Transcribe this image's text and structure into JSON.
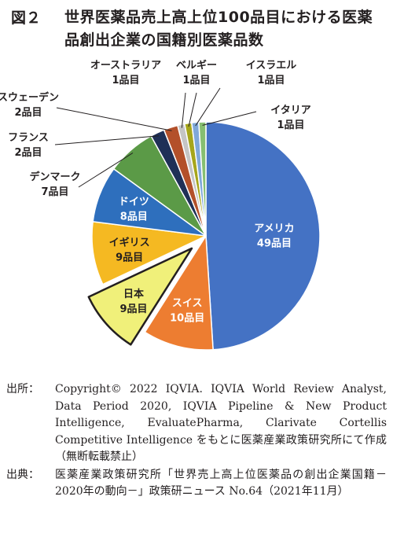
{
  "figure": {
    "label": "図２",
    "title": "世界医薬品売上高上位100品目における医薬品創出企業の国籍別医薬品数"
  },
  "chart_data": {
    "type": "pie",
    "unit": "品目",
    "slices": [
      {
        "name": "アメリカ",
        "value": 49,
        "value_label": "49品目",
        "color": "#4472c4"
      },
      {
        "name": "スイス",
        "value": 10,
        "value_label": "10品目",
        "color": "#ed7d31"
      },
      {
        "name": "日本",
        "value": 9,
        "value_label": "9品目",
        "color": "#f0f07a",
        "highlighted": true
      },
      {
        "name": "イギリス",
        "value": 9,
        "value_label": "9品目",
        "color": "#f5b922"
      },
      {
        "name": "ドイツ",
        "value": 8,
        "value_label": "8品目",
        "color": "#2e6fbd"
      },
      {
        "name": "デンマーク",
        "value": 7,
        "value_label": "7品目",
        "color": "#5b9a47"
      },
      {
        "name": "フランス",
        "value": 2,
        "value_label": "2品目",
        "color": "#1f3057"
      },
      {
        "name": "スウェーデン",
        "value": 2,
        "value_label": "2品目",
        "color": "#b3502a"
      },
      {
        "name": "オーストラリア",
        "value": 1,
        "value_label": "1品目",
        "color": "#c5c5c5"
      },
      {
        "name": "ベルギー",
        "value": 1,
        "value_label": "1品目",
        "color": "#a6a61b"
      },
      {
        "name": "イスラエル",
        "value": 1,
        "value_label": "1品目",
        "color": "#7fa8d8"
      },
      {
        "name": "イタリア",
        "value": 1,
        "value_label": "1品目",
        "color": "#86bf71"
      }
    ]
  },
  "notes": [
    {
      "key": "出所：",
      "text": "Copyright© 2022 IQVIA. IQVIA World Review Analyst, Data Period 2020, IQVIA Pipeline & New Product Intelligence, EvaluatePharma, Clarivate Cortellis Competitive Intelligence をもとに医薬産業政策研究所にて作成（無断転載禁止）"
    },
    {
      "key": "出典：",
      "text": "医薬産業政策研究所「世界売上高上位医薬品の創出企業国籍－2020年の動向－」政策研ニュース No.64（2021年11月）"
    }
  ]
}
